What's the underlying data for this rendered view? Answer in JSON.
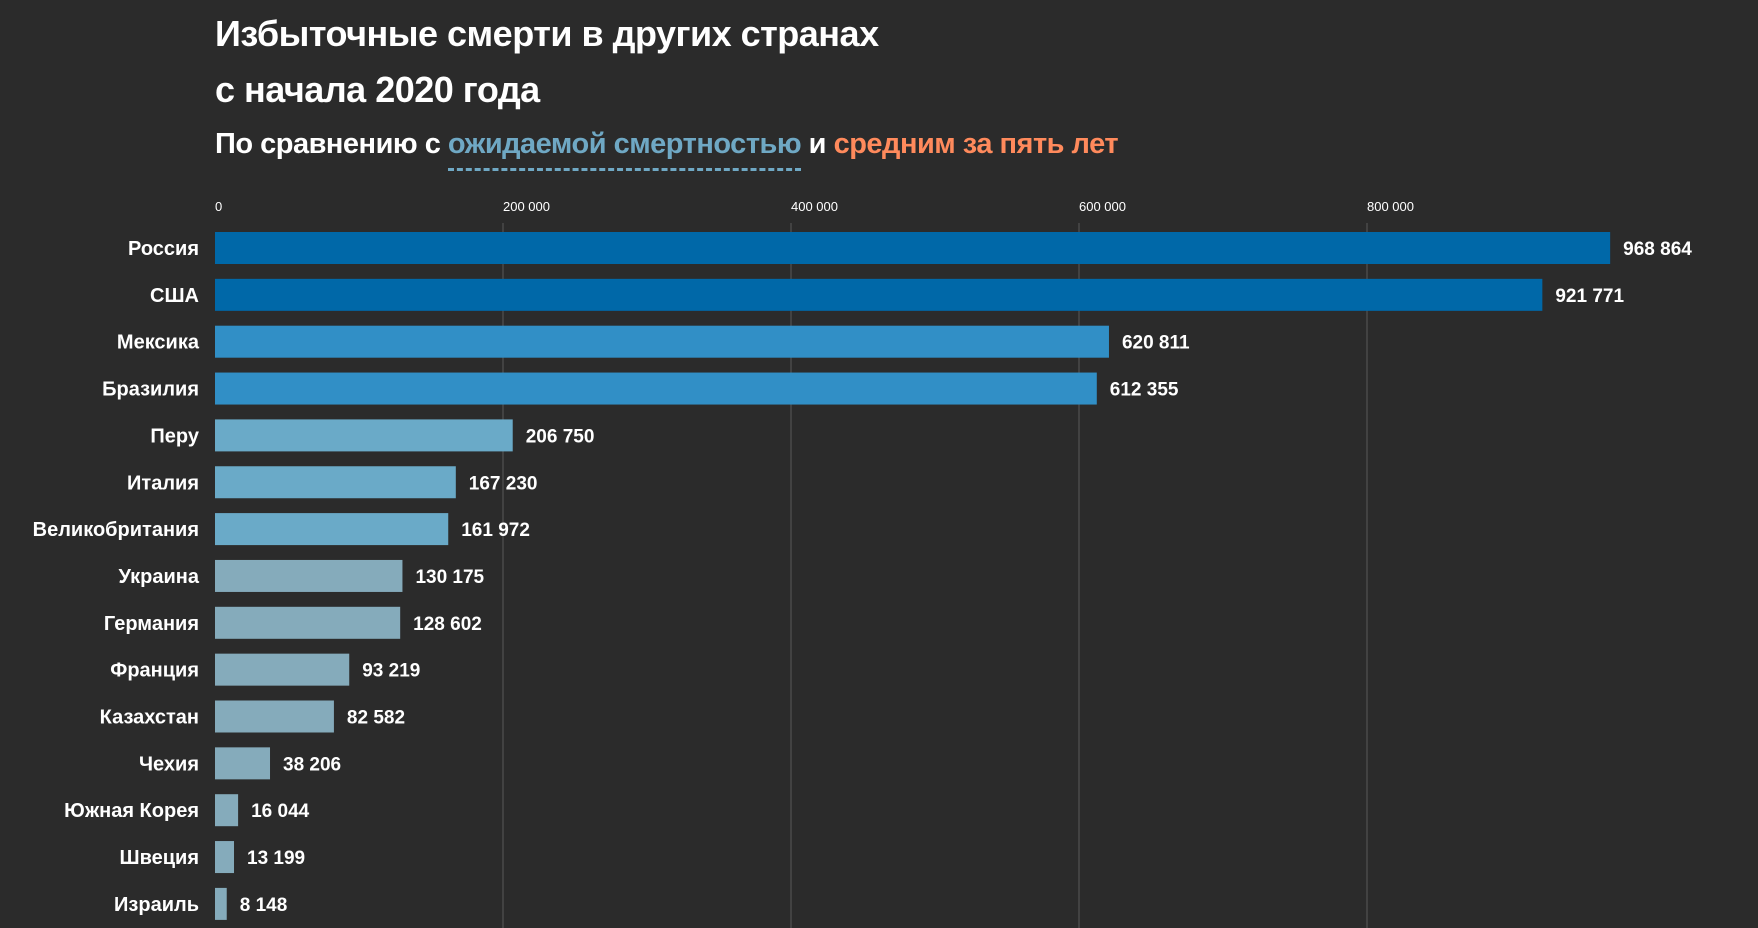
{
  "title_line1": "Избыточные смерти в других странах",
  "title_line2": "с начала 2020 года",
  "subtitle": {
    "prefix": "По сравнению с ",
    "blue": "ожидаемой смертностью",
    "middle": " и ",
    "orange": "средним за пять лет"
  },
  "colors": {
    "background": "#2b2b2b",
    "blue_text": "#6fa8c4",
    "orange_text": "#ff8a5c"
  },
  "chart_data": {
    "type": "bar",
    "orientation": "horizontal",
    "xlim": [
      0,
      1000000
    ],
    "grid": true,
    "ticks": [
      0,
      200000,
      400000,
      600000,
      800000
    ],
    "tick_labels": [
      "0",
      "200 000",
      "400 000",
      "600 000",
      "800 000"
    ],
    "categories": [
      "Россия",
      "США",
      "Мексика",
      "Бразилия",
      "Перу",
      "Италия",
      "Великобритания",
      "Украина",
      "Германия",
      "Франция",
      "Казахстан",
      "Чехия",
      "Южная Корея",
      "Швеция",
      "Израиль"
    ],
    "values": [
      968864,
      921771,
      620811,
      612355,
      206750,
      167230,
      161972,
      130175,
      128602,
      93219,
      82582,
      38206,
      16044,
      13199,
      8148
    ],
    "value_labels": [
      "968 864",
      "921 771",
      "620 811",
      "612 355",
      "206 750",
      "167 230",
      "161 972",
      "130 175",
      "128 602",
      "93 219",
      "82 582",
      "38 206",
      "16 044",
      "13 199",
      "8 148"
    ],
    "bar_colors": [
      "#0068a8",
      "#0068a8",
      "#318fc6",
      "#318fc6",
      "#6aaac8",
      "#6aaac8",
      "#6aaac8",
      "#85abbb",
      "#85abbb",
      "#85abbb",
      "#85abbb",
      "#85abbb",
      "#85abbb",
      "#85abbb",
      "#85abbb"
    ]
  }
}
